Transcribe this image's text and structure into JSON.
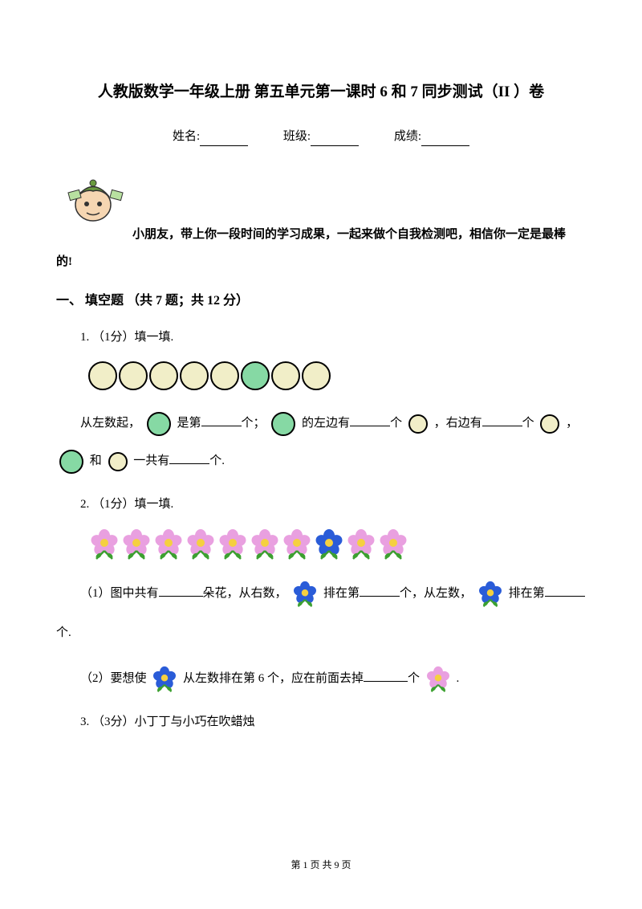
{
  "title": "人教版数学一年级上册 第五单元第一课时 6 和 7 同步测试（II ）卷",
  "info": {
    "name_label": "姓名:",
    "class_label": "班级:",
    "score_label": "成绩:"
  },
  "intro": {
    "line1": "小朋友，带上你一段时间的学习成果，一起来做个自我检测吧，相信你一定是最棒",
    "line2": "的!"
  },
  "section1": {
    "title": "一、 填空题 （共 7 题；共 12 分）",
    "q1": {
      "header": "1. （1分）填一填.",
      "circles": [
        {
          "color": "beige"
        },
        {
          "color": "beige"
        },
        {
          "color": "beige"
        },
        {
          "color": "beige"
        },
        {
          "color": "beige"
        },
        {
          "color": "green"
        },
        {
          "color": "beige"
        },
        {
          "color": "beige"
        }
      ],
      "part_a_pre": "从左数起，",
      "part_a_mid1": " 是第",
      "part_a_mid2": "个；",
      "part_a_mid3": " 的左边有",
      "part_a_mid4": "个 ",
      "part_a_mid5": "，右边有",
      "part_a_mid6": "个 ",
      "part_a_end": "，",
      "part_b_mid": "和 ",
      "part_b_mid2": " 一共有",
      "part_b_end": "个.",
      "colors": {
        "beige": "#f1eec8",
        "green": "#86d9a4",
        "border": "#000000"
      }
    },
    "q2": {
      "header": "2. （1分）填一填.",
      "flowers": [
        {
          "color": "pink"
        },
        {
          "color": "pink"
        },
        {
          "color": "pink"
        },
        {
          "color": "pink"
        },
        {
          "color": "pink"
        },
        {
          "color": "pink"
        },
        {
          "color": "pink"
        },
        {
          "color": "blue"
        },
        {
          "color": "pink"
        },
        {
          "color": "pink"
        }
      ],
      "sub1_a": "（1）图中共有",
      "sub1_b": "朵花，从右数，",
      "sub1_c": " 排在第",
      "sub1_d": "个，从左数，",
      "sub1_e": " 排在第",
      "sub1_end": "个.",
      "sub2_a": "（2）要想使 ",
      "sub2_b": " 从左数排在第 6 个，应在前面去掉",
      "sub2_c": "个 ",
      "sub2_end": " .",
      "colors": {
        "pink_petal": "#e9a0e0",
        "pink_center": "#f5d040",
        "blue_petal": "#2a5cd8",
        "blue_center": "#f5d040",
        "leaf": "#3ca030"
      }
    },
    "q3": {
      "header": "3. （3分）小丁丁与小巧在吹蜡烛"
    }
  },
  "footer": {
    "text": "第 1 页 共 9 页"
  },
  "mascot": {
    "skin": "#f6d6b2",
    "hat": "#6a9b3e",
    "outline": "#333333",
    "paper": "#b8e0a0"
  }
}
